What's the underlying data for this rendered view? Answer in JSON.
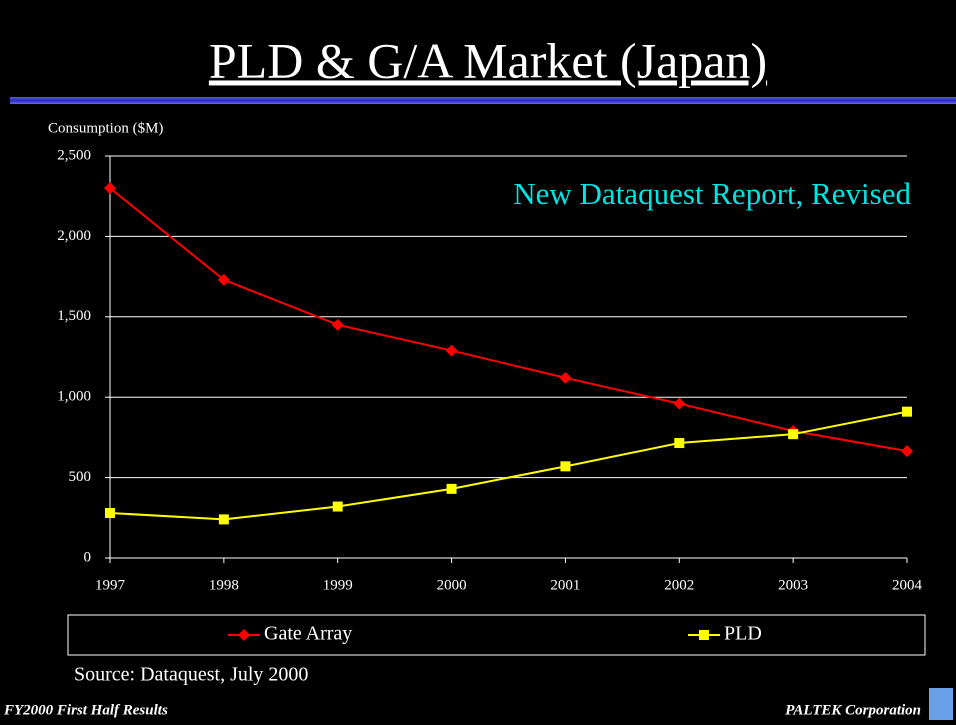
{
  "chart_data": {
    "type": "line",
    "title": "PLD & G/A Market  (Japan)",
    "y_label": "Consumption ($M)",
    "annotation": "New Dataquest Report, Revised",
    "source": "Source: Dataquest, July 2000",
    "categories": [
      "1997",
      "1998",
      "1999",
      "2000",
      "2001",
      "2002",
      "2003",
      "2004"
    ],
    "series": [
      {
        "name": "Gate Array",
        "color": "#ff0000",
        "marker": "diamond",
        "values": [
          2300,
          1730,
          1450,
          1290,
          1120,
          960,
          790,
          665
        ]
      },
      {
        "name": "PLD",
        "color": "#ffff00",
        "marker": "square",
        "values": [
          280,
          240,
          320,
          430,
          570,
          715,
          770,
          910
        ]
      }
    ],
    "ylim": [
      0,
      2500
    ],
    "yticks": [
      0,
      500,
      {
        "value": 1000,
        "label": "1,000"
      },
      {
        "value": 1500,
        "label": "1,500"
      },
      {
        "value": 2000,
        "label": "2,000"
      },
      {
        "value": 2500,
        "label": "2,500"
      }
    ],
    "grid": true,
    "legend": "bottom"
  },
  "footer": {
    "left": "FY2000 First Half Results",
    "right": "PALTEK Corporation"
  }
}
